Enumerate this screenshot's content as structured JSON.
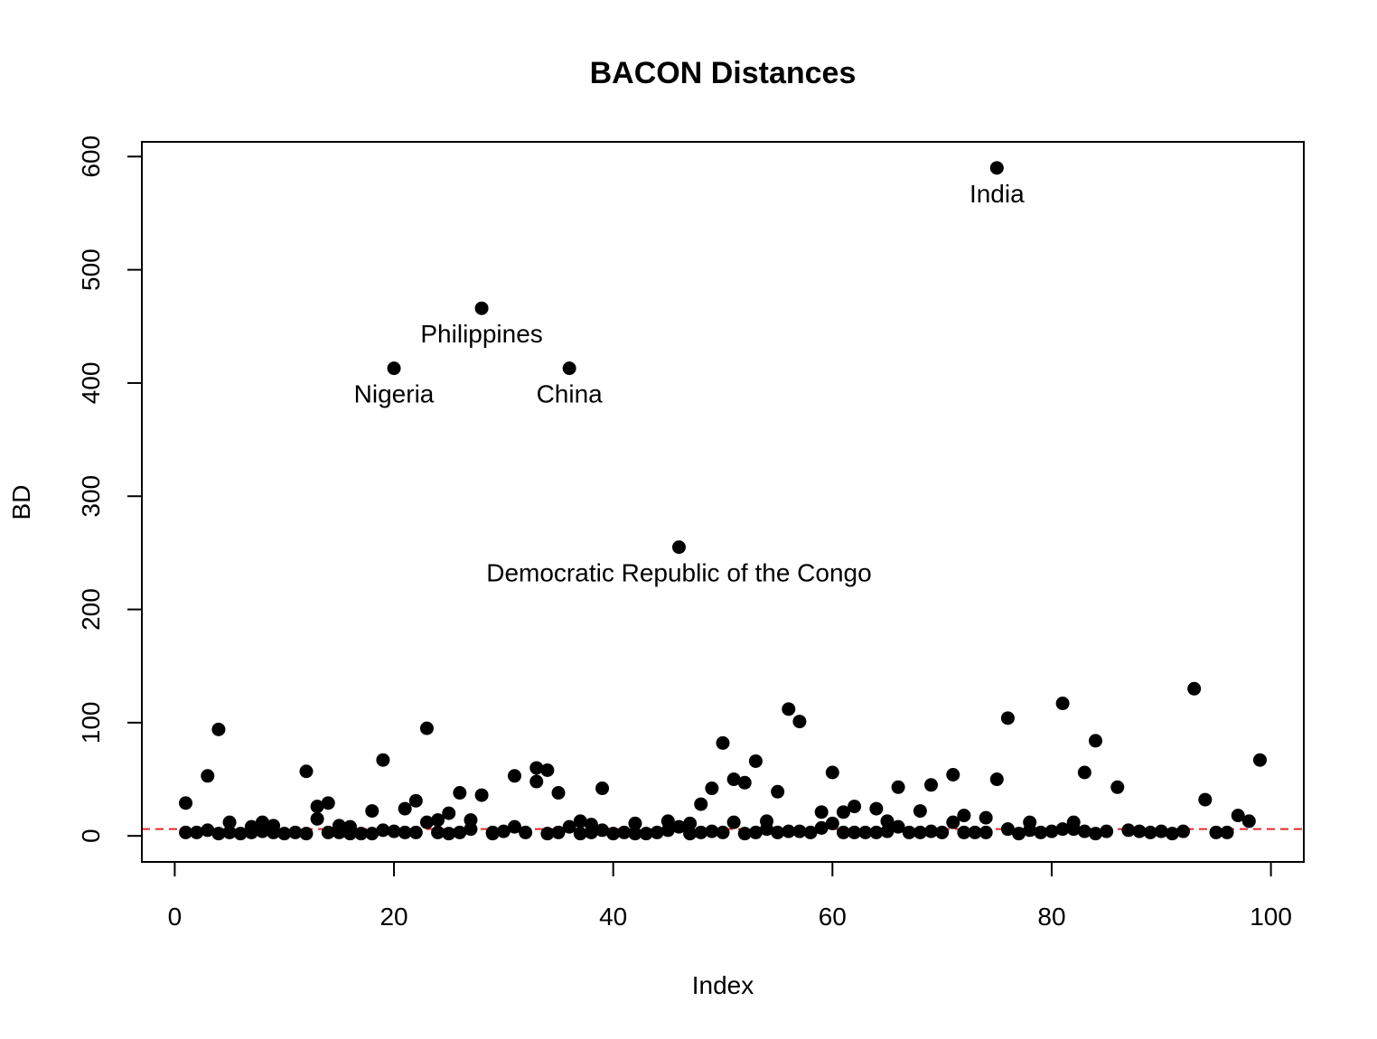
{
  "chart_data": {
    "type": "scatter",
    "title": "BACON Distances",
    "xlabel": "Index",
    "ylabel": "BD",
    "xlim": [
      -3,
      103
    ],
    "ylim": [
      -23,
      613
    ],
    "xticks": [
      0,
      20,
      40,
      60,
      80,
      100
    ],
    "yticks": [
      0,
      100,
      200,
      300,
      400,
      500,
      600
    ],
    "grid": false,
    "legend": "none",
    "point_color": "#000000",
    "threshold": {
      "value": 6,
      "color": "#e8262b",
      "style": "dashed"
    },
    "points": [
      [
        1,
        3
      ],
      [
        1,
        29
      ],
      [
        2,
        3
      ],
      [
        3,
        5
      ],
      [
        3,
        53
      ],
      [
        4,
        2
      ],
      [
        4,
        94
      ],
      [
        5,
        3
      ],
      [
        5,
        12
      ],
      [
        6,
        2
      ],
      [
        7,
        3
      ],
      [
        7,
        8
      ],
      [
        8,
        4
      ],
      [
        8,
        12
      ],
      [
        9,
        3
      ],
      [
        9,
        9
      ],
      [
        10,
        2
      ],
      [
        11,
        3
      ],
      [
        12,
        2
      ],
      [
        12,
        57
      ],
      [
        13,
        15
      ],
      [
        13,
        26
      ],
      [
        14,
        3
      ],
      [
        14,
        29
      ],
      [
        15,
        3
      ],
      [
        15,
        9
      ],
      [
        16,
        2
      ],
      [
        16,
        8
      ],
      [
        17,
        2
      ],
      [
        18,
        2
      ],
      [
        18,
        22
      ],
      [
        19,
        5
      ],
      [
        19,
        67
      ],
      [
        20,
        4
      ],
      [
        20,
        413
      ],
      [
        21,
        3
      ],
      [
        21,
        24
      ],
      [
        22,
        3
      ],
      [
        22,
        31
      ],
      [
        23,
        12
      ],
      [
        23,
        95
      ],
      [
        24,
        3
      ],
      [
        24,
        14
      ],
      [
        25,
        2
      ],
      [
        25,
        20
      ],
      [
        26,
        3
      ],
      [
        26,
        38
      ],
      [
        27,
        6
      ],
      [
        27,
        14
      ],
      [
        28,
        36
      ],
      [
        28,
        466
      ],
      [
        29,
        2
      ],
      [
        29,
        3
      ],
      [
        30,
        4
      ],
      [
        31,
        8
      ],
      [
        31,
        53
      ],
      [
        32,
        3
      ],
      [
        33,
        48
      ],
      [
        33,
        60
      ],
      [
        34,
        2
      ],
      [
        34,
        58
      ],
      [
        35,
        3
      ],
      [
        35,
        38
      ],
      [
        36,
        8
      ],
      [
        36,
        413
      ],
      [
        37,
        2
      ],
      [
        37,
        13
      ],
      [
        38,
        3
      ],
      [
        38,
        10
      ],
      [
        39,
        5
      ],
      [
        39,
        42
      ],
      [
        40,
        2
      ],
      [
        41,
        3
      ],
      [
        42,
        2
      ],
      [
        42,
        11
      ],
      [
        43,
        2
      ],
      [
        44,
        3
      ],
      [
        45,
        5
      ],
      [
        45,
        13
      ],
      [
        46,
        8
      ],
      [
        46,
        255
      ],
      [
        47,
        2
      ],
      [
        47,
        11
      ],
      [
        48,
        3
      ],
      [
        48,
        28
      ],
      [
        49,
        4
      ],
      [
        49,
        42
      ],
      [
        50,
        3
      ],
      [
        50,
        82
      ],
      [
        51,
        12
      ],
      [
        51,
        50
      ],
      [
        52,
        2
      ],
      [
        52,
        47
      ],
      [
        53,
        3
      ],
      [
        53,
        66
      ],
      [
        54,
        6
      ],
      [
        54,
        13
      ],
      [
        55,
        3
      ],
      [
        55,
        39
      ],
      [
        56,
        4
      ],
      [
        56,
        112
      ],
      [
        57,
        4
      ],
      [
        57,
        101
      ],
      [
        58,
        3
      ],
      [
        59,
        7
      ],
      [
        59,
        21
      ],
      [
        60,
        11
      ],
      [
        60,
        56
      ],
      [
        61,
        3
      ],
      [
        61,
        21
      ],
      [
        62,
        3
      ],
      [
        62,
        26
      ],
      [
        63,
        3
      ],
      [
        64,
        3
      ],
      [
        64,
        24
      ],
      [
        65,
        4
      ],
      [
        65,
        13
      ],
      [
        66,
        8
      ],
      [
        66,
        43
      ],
      [
        67,
        3
      ],
      [
        68,
        3
      ],
      [
        68,
        22
      ],
      [
        69,
        4
      ],
      [
        69,
        45
      ],
      [
        70,
        3
      ],
      [
        71,
        12
      ],
      [
        71,
        54
      ],
      [
        72,
        3
      ],
      [
        72,
        18
      ],
      [
        73,
        3
      ],
      [
        74,
        3
      ],
      [
        74,
        16
      ],
      [
        75,
        50
      ],
      [
        75,
        590
      ],
      [
        76,
        6
      ],
      [
        76,
        104
      ],
      [
        77,
        2
      ],
      [
        78,
        5
      ],
      [
        78,
        12
      ],
      [
        79,
        3
      ],
      [
        80,
        4
      ],
      [
        81,
        6
      ],
      [
        81,
        117
      ],
      [
        82,
        6
      ],
      [
        82,
        12
      ],
      [
        83,
        4
      ],
      [
        83,
        56
      ],
      [
        84,
        2
      ],
      [
        84,
        84
      ],
      [
        85,
        4
      ],
      [
        86,
        43
      ],
      [
        87,
        5
      ],
      [
        88,
        4
      ],
      [
        89,
        3
      ],
      [
        90,
        4
      ],
      [
        91,
        2
      ],
      [
        92,
        4
      ],
      [
        93,
        130
      ],
      [
        94,
        32
      ],
      [
        95,
        3
      ],
      [
        96,
        3
      ],
      [
        97,
        18
      ],
      [
        98,
        13
      ],
      [
        99,
        67
      ]
    ],
    "annotations": [
      {
        "text": "India",
        "x": 75,
        "y": 590
      },
      {
        "text": "Philippines",
        "x": 28,
        "y": 466
      },
      {
        "text": "Nigeria",
        "x": 20,
        "y": 413
      },
      {
        "text": "China",
        "x": 36,
        "y": 413
      },
      {
        "text": "Democratic Republic of the Congo",
        "x": 46,
        "y": 255
      }
    ]
  }
}
